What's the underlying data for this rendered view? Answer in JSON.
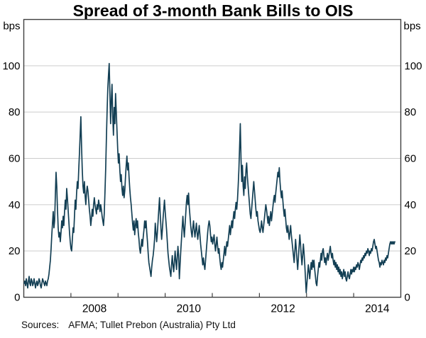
{
  "title": "Spread of 3-month Bank Bills to OIS",
  "source": {
    "label": "Sources:",
    "text": "AFMA; Tullet Prebon (Australia) Pty Ltd"
  },
  "colors": {
    "line": "#133f54",
    "grid": "#cccccc",
    "frame": "#3f3f3f",
    "text": "#000000"
  },
  "chart_data": {
    "type": "line",
    "title": "Spread of 3-month Bank Bills to OIS",
    "xlabel": "",
    "ylabel": "bps",
    "unit_left": "bps",
    "unit_right": "bps",
    "grid": true,
    "legend": false,
    "xlim": [
      2007.0,
      2015.0
    ],
    "ylim": [
      0,
      120
    ],
    "yticks": [
      0,
      20,
      40,
      60,
      80,
      100
    ],
    "xticks_years": [
      2008,
      2009,
      2010,
      2011,
      2012,
      2013,
      2014
    ],
    "xtick_labels": [
      {
        "label": "2008",
        "year": 2008.5
      },
      {
        "label": "2010",
        "year": 2010.5
      },
      {
        "label": "2012",
        "year": 2012.5
      },
      {
        "label": "2014",
        "year": 2014.5
      }
    ],
    "series": [
      {
        "name": "Spread of 3-month bank bills to OIS",
        "color": "#133f54",
        "x_start_year": 2007.008,
        "x_step_year": 0.015037,
        "values": [
          6,
          7,
          5,
          8,
          6,
          4,
          7,
          9,
          6,
          5,
          8,
          7,
          5,
          6,
          8,
          6,
          4,
          6,
          7,
          5,
          6,
          8,
          7,
          5,
          4,
          6,
          8,
          7,
          6,
          5,
          7,
          6,
          5,
          7,
          8,
          10,
          13,
          16,
          21,
          27,
          32,
          37,
          30,
          33,
          44,
          54,
          48,
          38,
          30,
          26,
          28,
          24,
          28,
          33,
          30,
          35,
          31,
          37,
          42,
          38,
          47,
          43,
          38,
          33,
          28,
          24,
          21,
          20,
          25,
          30,
          28,
          35,
          42,
          38,
          45,
          50,
          47,
          55,
          62,
          70,
          78,
          65,
          55,
          48,
          45,
          50,
          44,
          40,
          45,
          48,
          46,
          42,
          38,
          35,
          31,
          34,
          38,
          35,
          40,
          43,
          40,
          38,
          36,
          40,
          38,
          42,
          40,
          37,
          40,
          38,
          35,
          33,
          31,
          36,
          45,
          55,
          68,
          80,
          90,
          96,
          101,
          88,
          75,
          85,
          92,
          78,
          70,
          82,
          75,
          88,
          80,
          72,
          64,
          58,
          62,
          55,
          50,
          53,
          47,
          44,
          48,
          43,
          46,
          52,
          57,
          61,
          55,
          58,
          52,
          47,
          43,
          40,
          36,
          32,
          29,
          33,
          27,
          31,
          34,
          30,
          33,
          28,
          25,
          21,
          19,
          22,
          25,
          22,
          26,
          29,
          33,
          30,
          33,
          28,
          24,
          19,
          15,
          13,
          11,
          9,
          13,
          16,
          18,
          21,
          25,
          32,
          28,
          24,
          28,
          33,
          38,
          43,
          36,
          30,
          25,
          29,
          34,
          38,
          42,
          37,
          33,
          29,
          24,
          19,
          16,
          13,
          11,
          9,
          14,
          18,
          14,
          11,
          15,
          20,
          16,
          12,
          17,
          22,
          18,
          8,
          14,
          20,
          25,
          30,
          35,
          30,
          26,
          31,
          36,
          41,
          44,
          40,
          45,
          39,
          35,
          31,
          28,
          26,
          30,
          33,
          29,
          26,
          29,
          32,
          28,
          25,
          28,
          31,
          27,
          23,
          20,
          17,
          14,
          17,
          14,
          12,
          16,
          20,
          24,
          28,
          31,
          33,
          31,
          27,
          24,
          26,
          23,
          25,
          27,
          23,
          20,
          23,
          26,
          22,
          19,
          21,
          17,
          14,
          12,
          15,
          13,
          16,
          19,
          22,
          18,
          21,
          24,
          22,
          25,
          28,
          31,
          27,
          30,
          33,
          30,
          34,
          37,
          34,
          38,
          41,
          38,
          42,
          48,
          55,
          65,
          75,
          60,
          50,
          57,
          48,
          44,
          52,
          47,
          55,
          58,
          52,
          48,
          44,
          40,
          36,
          34,
          38,
          42,
          46,
          50,
          46,
          42,
          38,
          35,
          37,
          33,
          31,
          29,
          28,
          30,
          33,
          30,
          28,
          31,
          34,
          37,
          40,
          38,
          35,
          32,
          35,
          31,
          34,
          37,
          33,
          36,
          39,
          42,
          44,
          41,
          45,
          48,
          51,
          54,
          52,
          56,
          50,
          46,
          43,
          46,
          42,
          38,
          35,
          38,
          34,
          30,
          28,
          31,
          28,
          25,
          28,
          31,
          27,
          24,
          21,
          18,
          15,
          20,
          25,
          21,
          16,
          12,
          17,
          22,
          27,
          23,
          18,
          14,
          18,
          23,
          19,
          14,
          8,
          2,
          6,
          10,
          14,
          11,
          8,
          12,
          15,
          12,
          16,
          13,
          16,
          12,
          9,
          6,
          5,
          9,
          12,
          15,
          13,
          16,
          19,
          16,
          20,
          21,
          18,
          15,
          17,
          14,
          17,
          19,
          16,
          18,
          20,
          22,
          19,
          17,
          19,
          16,
          14,
          16,
          13,
          15,
          12,
          14,
          11,
          13,
          10,
          12,
          9,
          11,
          8,
          10,
          12,
          9,
          11,
          8,
          7,
          9,
          11,
          9,
          8,
          10,
          12,
          10,
          12,
          11,
          13,
          11,
          13,
          12,
          14,
          13,
          15,
          14,
          12,
          14,
          16,
          15,
          17,
          16,
          18,
          17,
          19,
          18,
          20,
          19,
          21,
          20,
          18,
          20,
          19,
          21,
          20,
          22,
          24,
          25,
          23,
          21,
          22,
          20,
          18,
          16,
          15,
          13,
          15,
          14,
          16,
          15,
          14,
          16,
          15,
          17,
          16,
          18,
          17,
          19,
          21,
          23,
          24,
          23,
          24,
          23,
          24,
          23,
          24
        ]
      }
    ]
  }
}
